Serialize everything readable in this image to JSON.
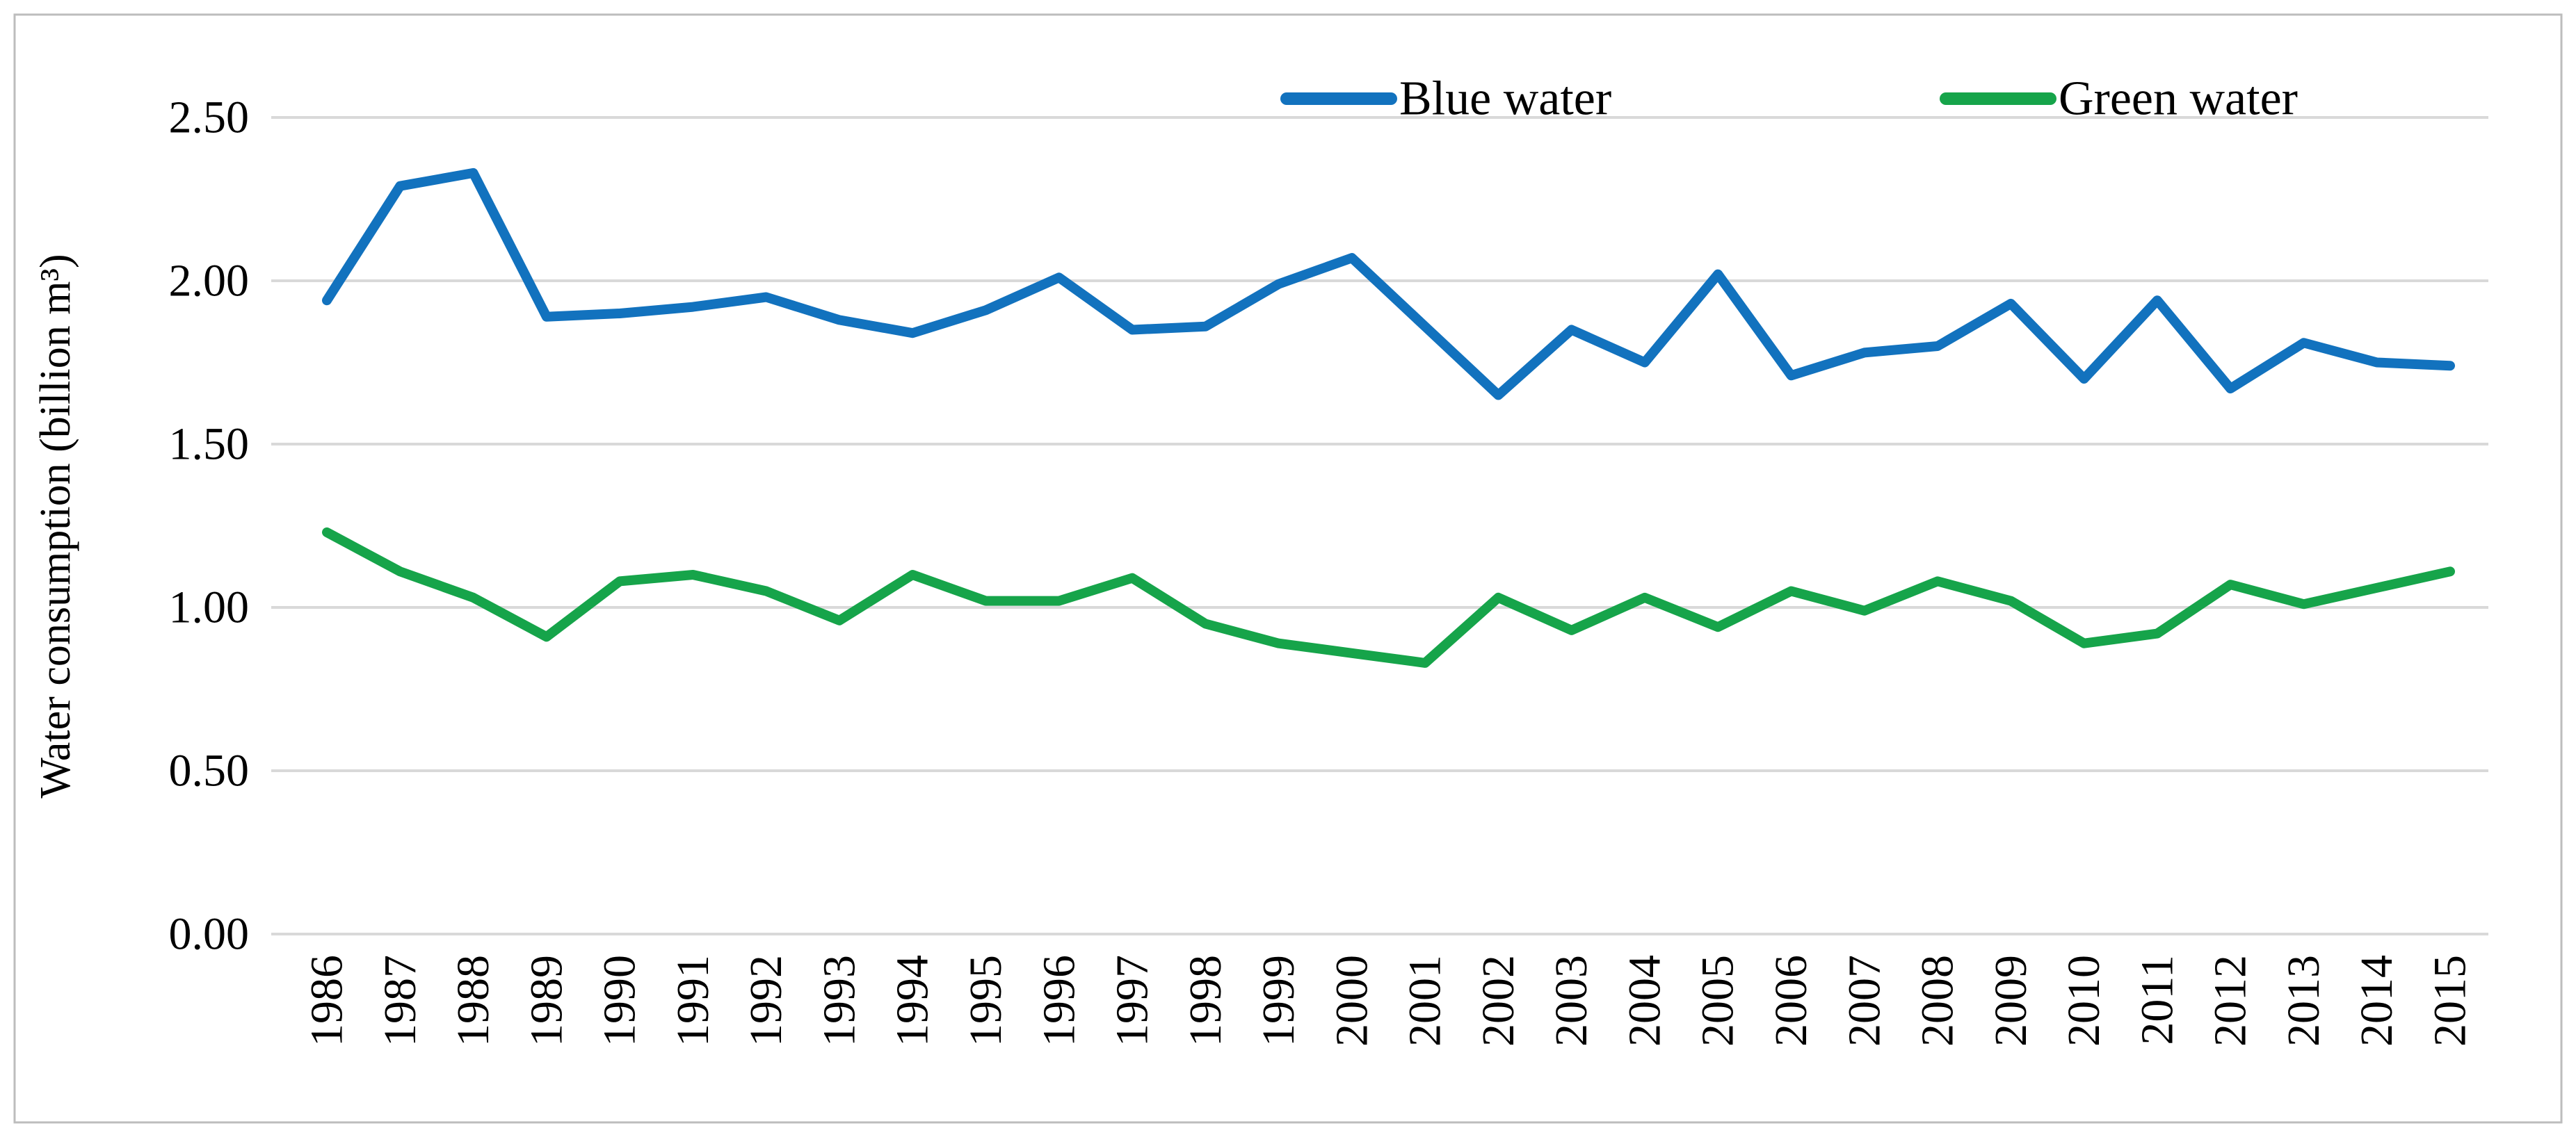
{
  "figure": {
    "background_color": "#ffffff",
    "border_color": "#bdbdbd",
    "gridline_color": "#d9d9d9",
    "text_color": "#000000"
  },
  "chart_data": {
    "type": "line",
    "title": "",
    "xlabel": "",
    "ylabel": "Water consumption (billion m³)",
    "ylim": [
      0.0,
      2.5
    ],
    "ytick_step": 0.5,
    "ytick_labels": [
      "0.00",
      "0.50",
      "1.00",
      "1.50",
      "2.00",
      "2.50"
    ],
    "grid": "horizontal",
    "legend_position": "top",
    "categories": [
      "1986",
      "1987",
      "1988",
      "1989",
      "1990",
      "1991",
      "1992",
      "1993",
      "1994",
      "1995",
      "1996",
      "1997",
      "1998",
      "1999",
      "2000",
      "2001",
      "2002",
      "2003",
      "2004",
      "2005",
      "2006",
      "2007",
      "2008",
      "2009",
      "2010",
      "2011",
      "2012",
      "2013",
      "2014",
      "2015"
    ],
    "series": [
      {
        "name": "Blue water",
        "color": "#1272be",
        "values": [
          1.94,
          2.29,
          2.33,
          1.89,
          1.9,
          1.92,
          1.95,
          1.88,
          1.84,
          1.91,
          2.01,
          1.85,
          1.86,
          1.99,
          2.07,
          1.86,
          1.65,
          1.85,
          1.75,
          2.02,
          1.71,
          1.78,
          1.8,
          1.93,
          1.7,
          1.94,
          1.67,
          1.81,
          1.75,
          1.74
        ]
      },
      {
        "name": "Green water",
        "color": "#16a44a",
        "values": [
          1.23,
          1.11,
          1.03,
          0.91,
          1.08,
          1.1,
          1.05,
          0.96,
          1.1,
          1.02,
          1.02,
          1.09,
          0.95,
          0.89,
          0.86,
          0.83,
          1.03,
          0.93,
          1.03,
          0.94,
          1.05,
          0.99,
          1.08,
          1.02,
          0.89,
          0.92,
          1.07,
          1.01,
          1.06,
          1.11
        ]
      }
    ]
  }
}
